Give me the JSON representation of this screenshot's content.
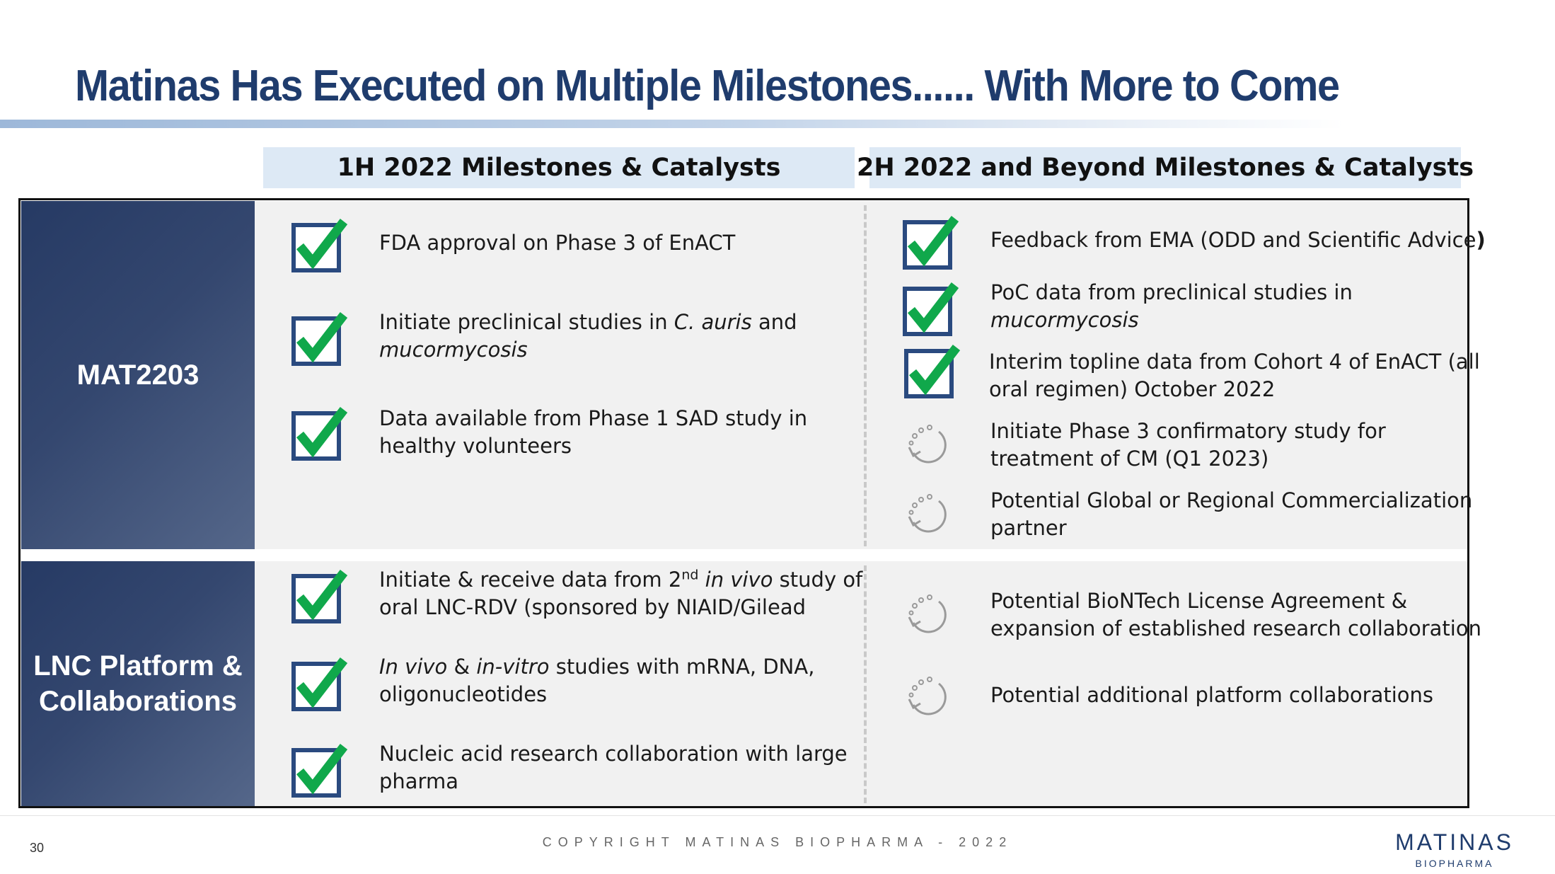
{
  "title": "Matinas Has Executed on Multiple Milestones...... With More to Come",
  "columns": {
    "left": "1H 2022 Milestones & Catalysts",
    "right": "2H 2022 and Beyond Milestones & Catalysts"
  },
  "rows": {
    "mat2203": {
      "label": "MAT2203",
      "h1": {
        "item1": "FDA approval on Phase 3 of EnACT",
        "item2_a": "Initiate preclinical studies in ",
        "item2_b": "C. auris",
        "item2_c": " and",
        "item2_d": "mucormycosis",
        "item3_line1": "Data available from Phase 1 SAD study in",
        "item3_line2": "healthy volunteers"
      },
      "h2": {
        "item1_a": "Feedback from EMA (ODD and Scientific Advice",
        "item1_b": ")",
        "item2_line1": "PoC data from preclinical studies in",
        "item2_line2": "mucormycosis",
        "item3_line1": "Interim topline data from Cohort 4 of EnACT (all",
        "item3_line2": "oral regimen) October 2022",
        "item4_line1": "Initiate Phase 3 confirmatory study for",
        "item4_line2": "treatment of CM (Q1 2023)",
        "item5_line1": "Potential Global or Regional Commercialization",
        "item5_line2": "partner"
      }
    },
    "lnc": {
      "label_line1": "LNC Platform &",
      "label_line2": "Collaborations",
      "h1": {
        "item1_a": "Initiate & receive data from 2",
        "item1_sup": "nd",
        "item1_b": " ",
        "item1_c": "in vivo",
        "item1_d": " study of",
        "item1_line2": "oral LNC-RDV (sponsored by NIAID/Gilead",
        "item2_a": "In vivo",
        "item2_b": " & ",
        "item2_c": "in-vitro",
        "item2_d": " studies with mRNA, DNA,",
        "item2_line2": "oligonucleotides",
        "item3_line1": "Nucleic acid research collaboration with large",
        "item3_line2": "pharma"
      },
      "h2": {
        "item1_line1": "Potential BioNTech License Agreement &",
        "item1_line2": "expansion of established research collaboration",
        "item2": "Potential additional platform collaborations"
      }
    }
  },
  "icons": {
    "done": "checkbox-checked-icon",
    "pending": "refresh-pending-icon"
  },
  "colors": {
    "title": "#1f3c6d",
    "checkbox_border": "#2a4a7f",
    "check_mark": "#10a84b",
    "pending_icon": "#9a9a9a",
    "row_label_bg": "#2c3f68"
  },
  "footer": {
    "page_number": "30",
    "copyright": "COPYRIGHT MATINAS BIOPHARMA - 2022",
    "logo_main": "MATINAS",
    "logo_sub": "BIOPHARMA"
  }
}
